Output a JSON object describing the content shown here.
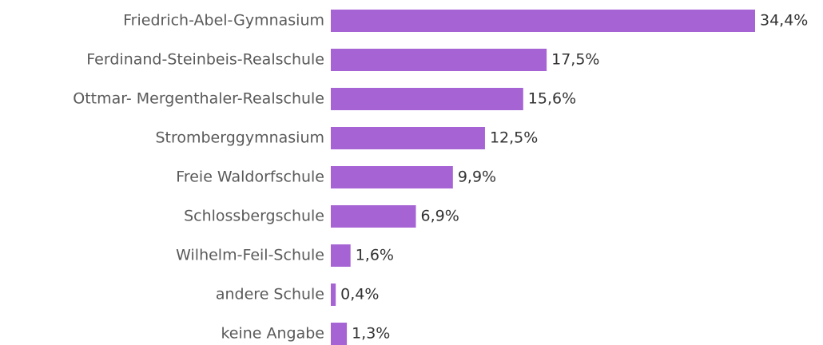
{
  "chart_data": {
    "type": "bar",
    "orientation": "horizontal",
    "categories": [
      "Friedrich-Abel-Gymnasium",
      "Ferdinand-Steinbeis-Realschule",
      "Ottmar- Mergenthaler-Realschule",
      "Stromberggymnasium",
      "Freie Waldorfschule",
      "Schlossbergschule",
      "Wilhelm-Feil-Schule",
      "andere Schule",
      "keine Angabe"
    ],
    "values": [
      34.4,
      17.5,
      15.6,
      12.5,
      9.9,
      6.9,
      1.6,
      0.4,
      1.3
    ],
    "value_labels": [
      "34,4%",
      "17,5%",
      "15,6%",
      "12,5%",
      "9,9%",
      "6,9%",
      "1,6%",
      "0,4%",
      "1,3%"
    ],
    "color": "#a663d4"
  }
}
